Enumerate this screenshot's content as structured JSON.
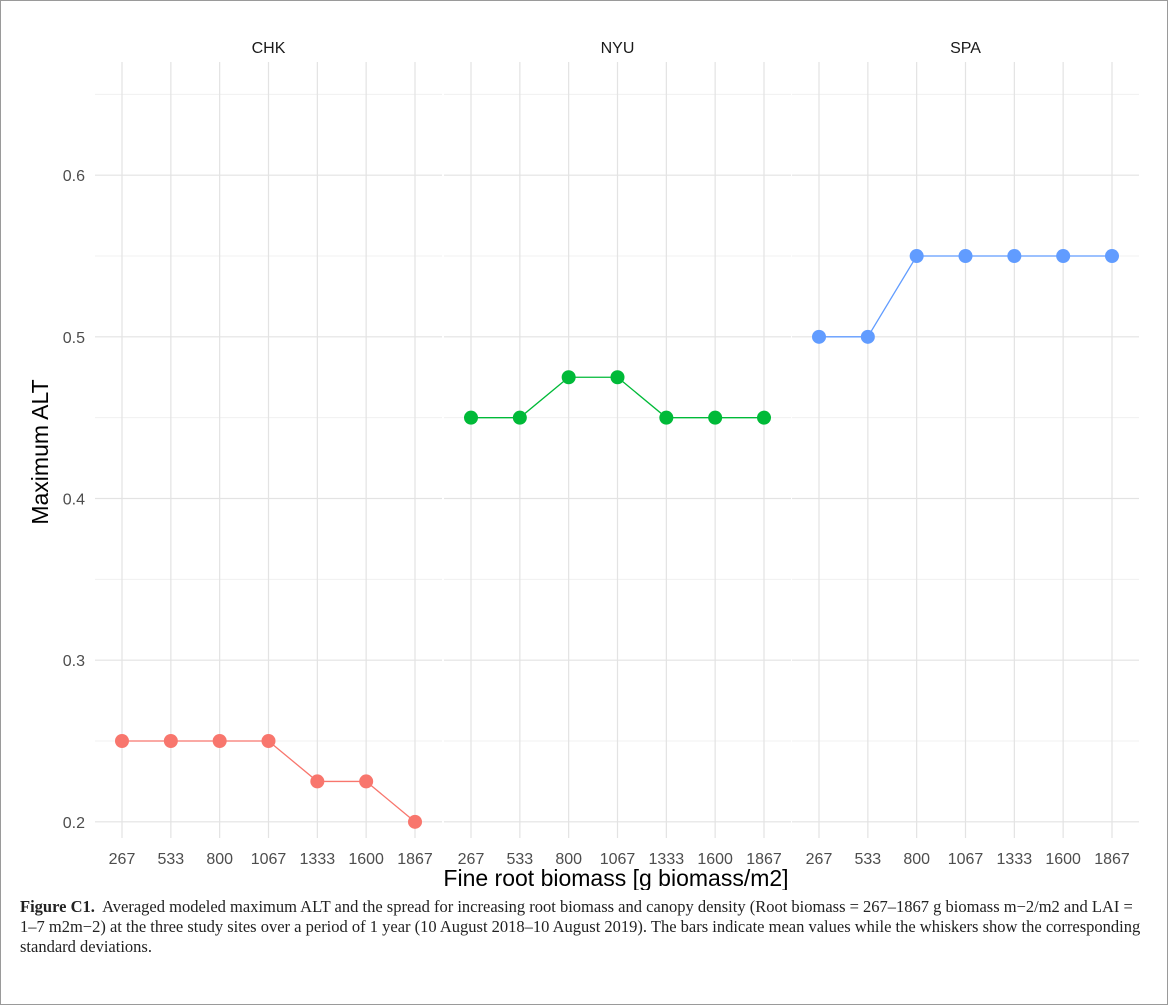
{
  "chart_data": {
    "type": "line",
    "facets": [
      "CHK",
      "NYU",
      "SPA"
    ],
    "categories": [
      "267",
      "533",
      "800",
      "1067",
      "1333",
      "1600",
      "1867"
    ],
    "series": [
      {
        "facet": "CHK",
        "color": "#F8766D",
        "values": [
          0.25,
          0.25,
          0.25,
          0.25,
          0.225,
          0.225,
          0.2
        ]
      },
      {
        "facet": "NYU",
        "color": "#00BA38",
        "values": [
          0.45,
          0.45,
          0.475,
          0.475,
          0.45,
          0.45,
          0.45
        ]
      },
      {
        "facet": "SPA",
        "color": "#619CFF",
        "values": [
          0.5,
          0.5,
          0.55,
          0.55,
          0.55,
          0.55,
          0.55
        ]
      }
    ],
    "xlabel": "Fine root biomass [g biomass/m2]",
    "ylabel": "Maximum ALT",
    "ylim": [
      0.19,
      0.67
    ],
    "yticks": [
      "0.2",
      "0.3",
      "0.4",
      "0.5",
      "0.6"
    ],
    "grid": true,
    "legend": "none"
  },
  "caption": {
    "label": "Figure C1.",
    "text": "Averaged modeled maximum ALT and the spread for increasing root biomass and canopy density (Root biomass = 267–1867 g biomass m−2/m2 and LAI = 1–7 m2m−2) at the three study sites over a period of 1 year (10 August 2018–10 August 2019). The bars indicate mean values while the whiskers show the corresponding standard deviations."
  }
}
